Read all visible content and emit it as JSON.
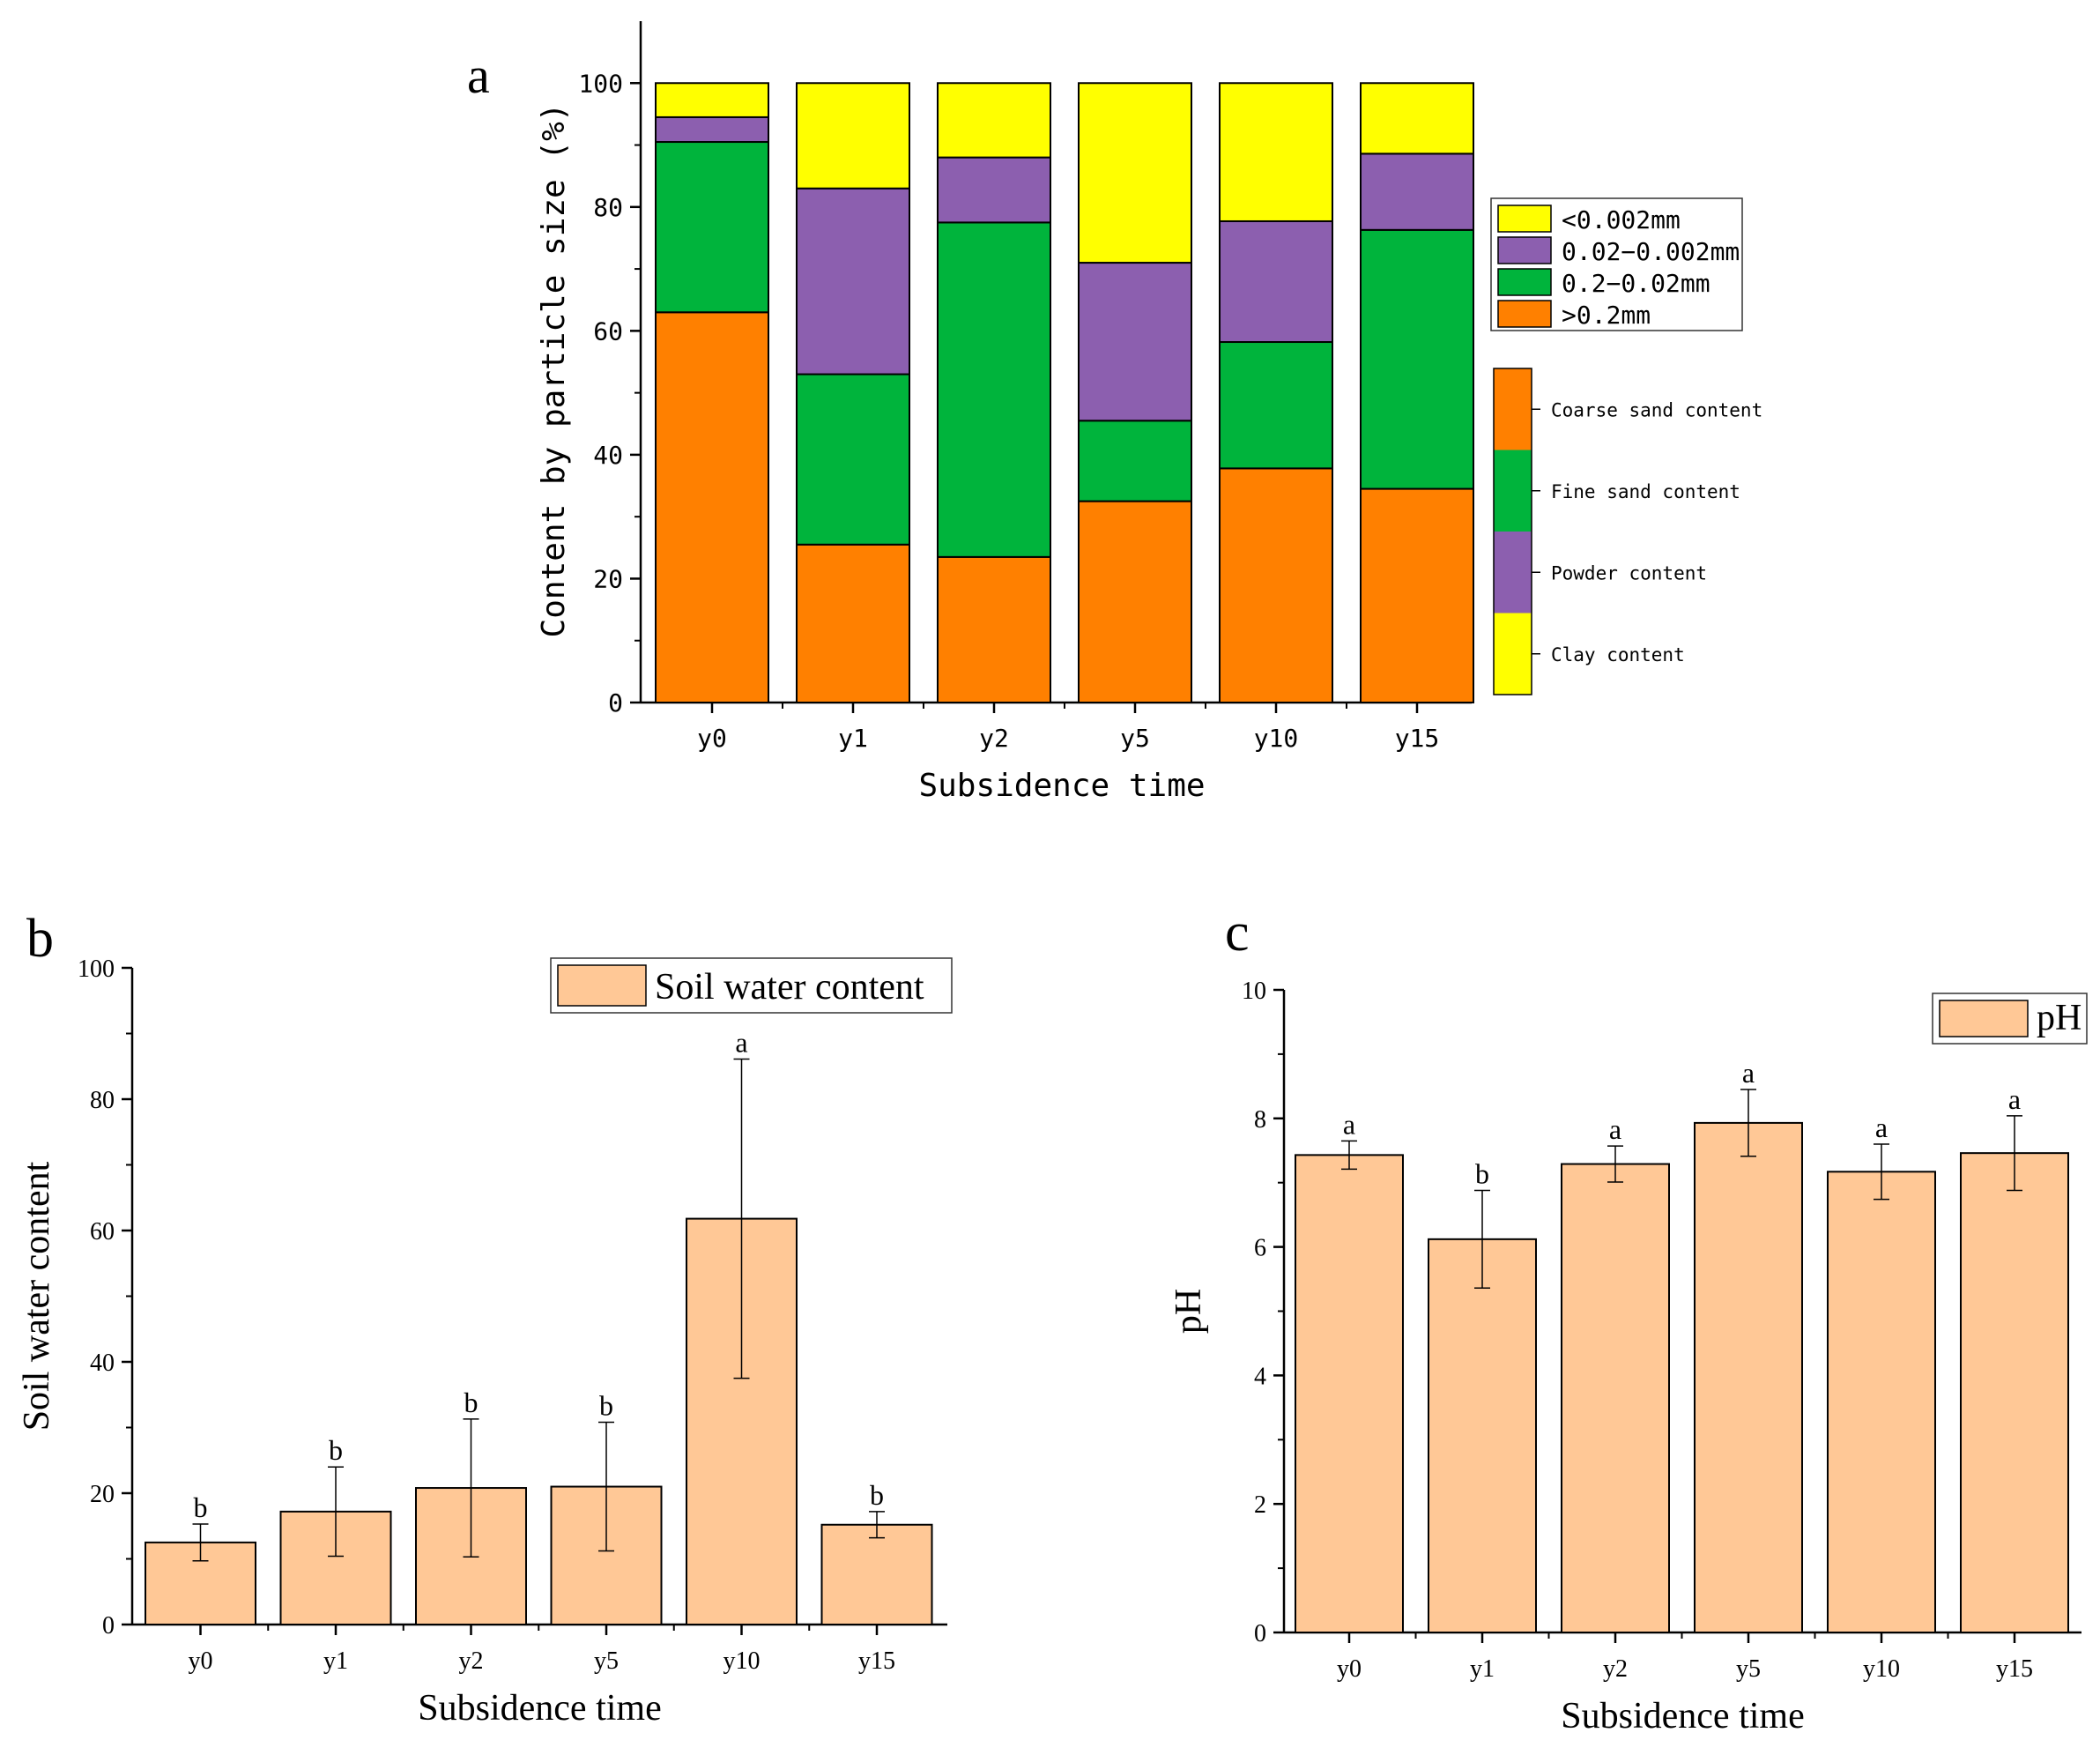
{
  "colors": {
    "coarse": "#FF8000",
    "fine": "#00B43C",
    "powder": "#8C5FAF",
    "clay": "#FFFF00",
    "bar_fill": "#FFC896",
    "axis": "#000000"
  },
  "chart_data": [
    {
      "id": "a",
      "type": "bar",
      "stacked": true,
      "panel_label": "a",
      "categories": [
        "y0",
        "y1",
        "y2",
        "y5",
        "y10",
        "y15"
      ],
      "xlabel": "Subsidence time",
      "ylabel": "Content by particle size (%)",
      "ylim": [
        0,
        110
      ],
      "yticks": [
        0,
        20,
        40,
        60,
        80,
        100
      ],
      "series": [
        {
          "name": ">0.2mm",
          "color_key": "coarse",
          "values": [
            63,
            25.5,
            23.5,
            32.5,
            37.8,
            34.5
          ]
        },
        {
          "name": "0.2−0.02mm",
          "color_key": "fine",
          "values": [
            27.5,
            27.5,
            54,
            13,
            20.4,
            41.8
          ]
        },
        {
          "name": "0.02−0.002mm",
          "color_key": "powder",
          "values": [
            4,
            30,
            10.5,
            25.5,
            19.5,
            12.3
          ]
        },
        {
          "name": "<0.002mm",
          "color_key": "clay",
          "values": [
            5.5,
            17,
            12,
            29,
            22.3,
            11.4
          ]
        }
      ],
      "legend_order": [
        "<0.002mm",
        "0.02−0.002mm",
        "0.2−0.02mm",
        ">0.2mm"
      ],
      "legend_placement": "right",
      "colorbar": [
        "Coarse sand content",
        "Fine sand content",
        "Powder content",
        "Clay content"
      ]
    },
    {
      "id": "b",
      "type": "bar",
      "panel_label": "b",
      "categories": [
        "y0",
        "y1",
        "y2",
        "y5",
        "y10",
        "y15"
      ],
      "values": [
        12.5,
        17.2,
        20.8,
        21,
        61.8,
        15.2
      ],
      "errors": [
        2.8,
        6.8,
        10.5,
        9.8,
        24.3,
        2
      ],
      "letters": [
        "b",
        "b",
        "b",
        "b",
        "a",
        "b"
      ],
      "xlabel": "Subsidence time",
      "ylabel": "Soil water content",
      "ylim": [
        0,
        100
      ],
      "yticks": [
        0,
        20,
        40,
        60,
        80,
        100
      ],
      "legend": "Soil water content",
      "legend_placement": "top-right"
    },
    {
      "id": "c",
      "type": "bar",
      "panel_label": "c",
      "categories": [
        "y0",
        "y1",
        "y2",
        "y5",
        "y10",
        "y15"
      ],
      "values": [
        7.43,
        6.12,
        7.29,
        7.93,
        7.17,
        7.46
      ],
      "errors": [
        0.22,
        0.76,
        0.28,
        0.52,
        0.43,
        0.58
      ],
      "letters": [
        "a",
        "b",
        "a",
        "a",
        "a",
        "a"
      ],
      "xlabel": "Subsidence time",
      "ylabel": "pH",
      "ylim": [
        0,
        10
      ],
      "yticks": [
        0,
        2,
        4,
        6,
        8,
        10
      ],
      "legend": "pH",
      "legend_placement": "top-right"
    }
  ]
}
